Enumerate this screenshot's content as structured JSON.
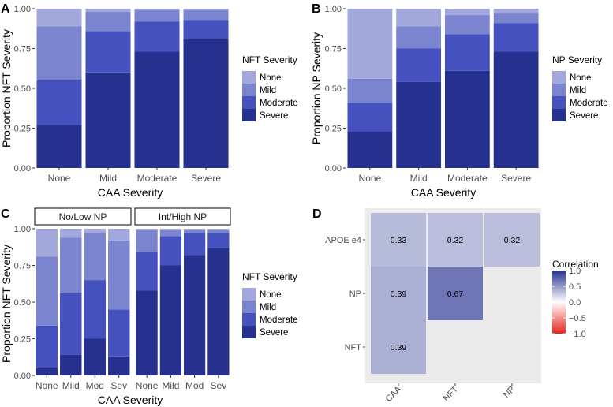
{
  "colors": {
    "None": "#a2a8dc",
    "Mild": "#7a84cf",
    "Moderate": "#4451bf",
    "Severe": "#26318f",
    "heat_high": "#26318f",
    "heat_mid": "#ffffff",
    "heat_low": "#e8241c",
    "panel_bg": "#ebebeb"
  },
  "chart_data": [
    {
      "panel": "A",
      "type": "bar",
      "stacked": true,
      "xlabel": "CAA Severity",
      "ylabel": "Proportion NFT Severity",
      "ylim": [
        0,
        1
      ],
      "yticks": [
        "0.00",
        "0.25",
        "0.50",
        "0.75",
        "1.00"
      ],
      "categories": [
        "None",
        "Mild",
        "Moderate",
        "Severe"
      ],
      "series": [
        {
          "name": "Severe",
          "values": [
            0.27,
            0.6,
            0.73,
            0.81
          ]
        },
        {
          "name": "Moderate",
          "values": [
            0.28,
            0.26,
            0.19,
            0.12
          ]
        },
        {
          "name": "Mild",
          "values": [
            0.34,
            0.12,
            0.07,
            0.06
          ]
        },
        {
          "name": "None",
          "values": [
            0.11,
            0.02,
            0.01,
            0.01
          ]
        }
      ],
      "legend_title": "NFT Severity",
      "legend": [
        "None",
        "Mild",
        "Moderate",
        "Severe"
      ]
    },
    {
      "panel": "B",
      "type": "bar",
      "stacked": true,
      "xlabel": "CAA Severity",
      "ylabel": "Proportion NP Severity",
      "ylim": [
        0,
        1
      ],
      "yticks": [
        "0.00",
        "0.25",
        "0.50",
        "0.75",
        "1.00"
      ],
      "categories": [
        "None",
        "Mild",
        "Moderate",
        "Severe"
      ],
      "series": [
        {
          "name": "Severe",
          "values": [
            0.23,
            0.54,
            0.61,
            0.73
          ]
        },
        {
          "name": "Moderate",
          "values": [
            0.18,
            0.21,
            0.23,
            0.18
          ]
        },
        {
          "name": "Mild",
          "values": [
            0.15,
            0.14,
            0.12,
            0.06
          ]
        },
        {
          "name": "None",
          "values": [
            0.44,
            0.11,
            0.04,
            0.03
          ]
        }
      ],
      "legend_title": "NP Severity",
      "legend": [
        "None",
        "Mild",
        "Moderate",
        "Severe"
      ]
    },
    {
      "panel": "C",
      "type": "bar",
      "stacked": true,
      "xlabel": "CAA Severity",
      "ylabel": "Proportion NFT Severity",
      "ylim": [
        0,
        1
      ],
      "yticks": [
        "0.00",
        "0.25",
        "0.50",
        "0.75",
        "1.00"
      ],
      "categories": [
        "None",
        "Mild",
        "Mod",
        "Sev"
      ],
      "facets": [
        {
          "strip": "No/Low NP",
          "series": [
            {
              "name": "Severe",
              "values": [
                0.05,
                0.14,
                0.25,
                0.13
              ]
            },
            {
              "name": "Moderate",
              "values": [
                0.29,
                0.42,
                0.4,
                0.32
              ]
            },
            {
              "name": "Mild",
              "values": [
                0.47,
                0.38,
                0.32,
                0.47
              ]
            },
            {
              "name": "None",
              "values": [
                0.19,
                0.06,
                0.03,
                0.08
              ]
            }
          ]
        },
        {
          "strip": "Int/High NP",
          "series": [
            {
              "name": "Severe",
              "values": [
                0.58,
                0.75,
                0.82,
                0.87
              ]
            },
            {
              "name": "Moderate",
              "values": [
                0.26,
                0.2,
                0.15,
                0.1
              ]
            },
            {
              "name": "Mild",
              "values": [
                0.15,
                0.04,
                0.02,
                0.02
              ]
            },
            {
              "name": "None",
              "values": [
                0.01,
                0.01,
                0.01,
                0.01
              ]
            }
          ]
        }
      ],
      "legend_title": "NFT Severity",
      "legend": [
        "None",
        "Mild",
        "Moderate",
        "Severe"
      ]
    },
    {
      "panel": "D",
      "type": "heatmap",
      "xlabels": [
        "CAA",
        "NFT",
        "NP"
      ],
      "ylabels": [
        "APOE e4",
        "NP",
        "NFT"
      ],
      "cells": [
        {
          "row": "APOE e4",
          "col": "CAA",
          "value": 0.33,
          "label": "0.33"
        },
        {
          "row": "APOE e4",
          "col": "NFT",
          "value": 0.32,
          "label": "0.32"
        },
        {
          "row": "APOE e4",
          "col": "NP",
          "value": 0.32,
          "label": "0.32"
        },
        {
          "row": "NP",
          "col": "CAA",
          "value": 0.39,
          "label": "0.39"
        },
        {
          "row": "NP",
          "col": "NFT",
          "value": 0.67,
          "label": "0.67"
        },
        {
          "row": "NFT",
          "col": "CAA",
          "value": 0.39,
          "label": "0.39"
        }
      ],
      "legend_title": "Correlation",
      "legend_ticks": [
        "1.0",
        "0.5",
        "0.0",
        "−0.5",
        "−1.0"
      ],
      "legend_values": [
        1.0,
        0.5,
        0.0,
        -0.5,
        -1.0
      ],
      "range": [
        -1,
        1
      ]
    }
  ]
}
